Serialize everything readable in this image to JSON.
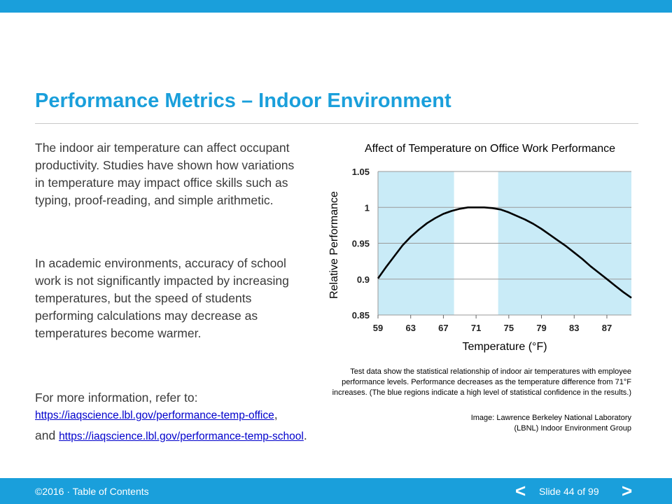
{
  "slide": {
    "title": "Performance Metrics – Indoor Environment",
    "paragraph1": "The indoor air temperature can affect occupant productivity. Studies have shown how variations in temperature may impact office skills such as typing, proof-reading, and simple arithmetic.",
    "paragraph2": "In academic environments, accuracy of school work is not significantly impacted by increasing temperatures, but the speed of students performing calculations may decrease as temperatures become warmer.",
    "more_info_prefix": "For more information, refer to:",
    "link_office": "https://iaqscience.lbl.gov/performance-temp-office",
    "link_office_suffix": ",",
    "and_text": "and ",
    "link_school": "https://iaqscience.lbl.gov/performance-temp-school",
    "link_school_suffix": ".",
    "caption": "Test data show the statistical relationship of indoor air temperatures with employee performance levels. Performance decreases as the temperature difference from 71°F increases. (The blue regions indicate a high level of statistical confidence in the results.)",
    "credit_line1": "Image: Lawrence Berkeley National Laboratory",
    "credit_line2": "(LBNL) Indoor Environment Group"
  },
  "footer": {
    "copyright": "©2016 · ",
    "toc_label": "Table of Contents",
    "prev_label": "<",
    "slide_label": "Slide 44 of 99",
    "next_label": ">"
  },
  "colors": {
    "accent": "#1a9fdb",
    "band": "#c9ebf7",
    "curve": "#000000"
  },
  "chart_data": {
    "type": "line",
    "title": "Affect of Temperature on Office Work Performance",
    "xlabel": "Temperature (°F)",
    "ylabel": "Relative Performance",
    "xlim": [
      59,
      90
    ],
    "ylim": [
      0.85,
      1.05
    ],
    "x_ticks": [
      59,
      63,
      67,
      71,
      75,
      79,
      83,
      87
    ],
    "y_ticks": [
      0.85,
      0.9,
      0.95,
      1,
      1.05
    ],
    "y_tick_labels": [
      "0.85",
      "0.9",
      "0.95",
      "1",
      "1.05"
    ],
    "grid": true,
    "confidence_bands": [
      [
        59,
        68.3
      ],
      [
        73.7,
        90
      ]
    ],
    "series": [
      {
        "x": [
          59,
          60,
          61,
          62,
          63,
          64,
          65,
          66,
          67,
          68,
          69,
          70,
          71,
          72,
          73,
          74,
          75,
          76,
          77,
          78,
          79,
          80,
          81,
          82,
          83,
          84,
          85,
          86,
          87,
          88,
          89,
          90
        ],
        "values": [
          0.901,
          0.917,
          0.932,
          0.947,
          0.959,
          0.969,
          0.978,
          0.985,
          0.991,
          0.995,
          0.998,
          1.0,
          1.0,
          1.0,
          0.999,
          0.997,
          0.993,
          0.988,
          0.983,
          0.977,
          0.97,
          0.962,
          0.954,
          0.946,
          0.937,
          0.928,
          0.918,
          0.909,
          0.9,
          0.891,
          0.882,
          0.874
        ]
      }
    ]
  }
}
